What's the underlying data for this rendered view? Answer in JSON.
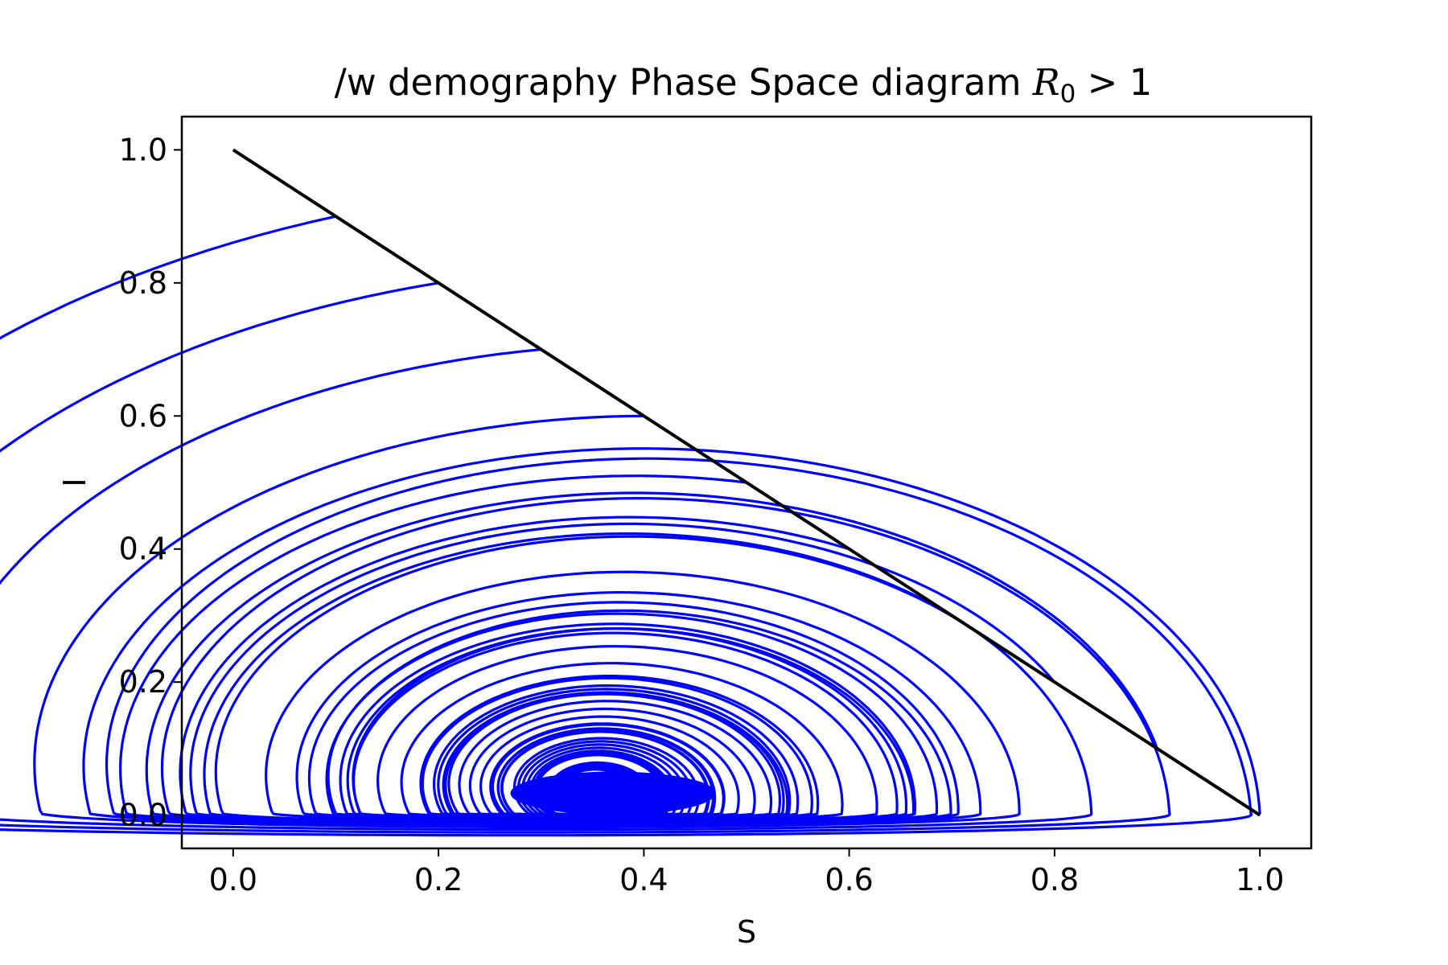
{
  "chart_data": {
    "type": "line",
    "title": {
      "text": "/w demography Phase Space diagram ",
      "math_symbol": "R",
      "math_subscript": "0",
      "suffix": " > 1"
    },
    "xlabel": "S",
    "ylabel": "I",
    "xlim": [
      -0.05,
      1.05
    ],
    "ylim": [
      -0.05,
      1.05
    ],
    "xticks": [
      0.0,
      0.2,
      0.4,
      0.6,
      0.8,
      1.0
    ],
    "xtick_labels": [
      "0.0",
      "0.2",
      "0.4",
      "0.6",
      "0.8",
      "1.0"
    ],
    "yticks": [
      0.0,
      0.2,
      0.4,
      0.6,
      0.8,
      1.0
    ],
    "ytick_labels": [
      "0.0",
      "0.2",
      "0.4",
      "0.6",
      "0.8",
      "1.0"
    ],
    "grid": false,
    "legend": "none",
    "colors": {
      "trajectories": "#0000ff",
      "boundary": "#000000",
      "axes": "#000000",
      "background": "#ffffff"
    },
    "boundary_line": {
      "x": [
        0.0,
        1.0
      ],
      "y": [
        1.0,
        0.0
      ]
    },
    "equilibrium": {
      "S": 0.35,
      "I": 0.035
    },
    "initial_conditions": [
      {
        "S": 0.1,
        "I": 0.9
      },
      {
        "S": 0.2,
        "I": 0.8
      },
      {
        "S": 0.3,
        "I": 0.7
      },
      {
        "S": 0.4,
        "I": 0.6
      },
      {
        "S": 0.5,
        "I": 0.5
      },
      {
        "S": 0.6,
        "I": 0.4
      },
      {
        "S": 0.7,
        "I": 0.3
      },
      {
        "S": 0.8,
        "I": 0.2
      },
      {
        "S": 0.9,
        "I": 0.1
      },
      {
        "S": 1.0,
        "I": 0.0
      }
    ]
  }
}
